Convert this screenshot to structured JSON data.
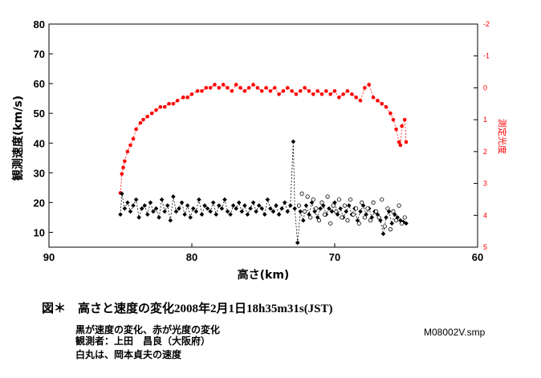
{
  "chart_data": {
    "type": "scatter",
    "xlabel": "高さ(km)",
    "ylabel": "観測速度(km/s)",
    "y2label": "測定光度",
    "xlim": [
      90,
      60
    ],
    "ylim": [
      5,
      80
    ],
    "y2lim": [
      5,
      -2
    ],
    "x_ticks": [
      90,
      80,
      70,
      60
    ],
    "y_ticks": [
      10,
      20,
      30,
      40,
      50,
      60,
      70,
      80
    ],
    "y2_ticks": [
      -2,
      -1,
      0,
      1,
      2,
      3,
      4,
      5
    ],
    "grid": false,
    "series": [
      {
        "id": "brightness",
        "axis": "right",
        "color": "#ff0000",
        "marker": "filled-circle",
        "line": "dashed",
        "points": [
          [
            85.0,
            3.3
          ],
          [
            84.9,
            2.7
          ],
          [
            84.8,
            2.5
          ],
          [
            84.7,
            2.3
          ],
          [
            84.5,
            2.0
          ],
          [
            84.3,
            1.8
          ],
          [
            84.1,
            1.6
          ],
          [
            83.9,
            1.3
          ],
          [
            83.6,
            1.1
          ],
          [
            83.4,
            1.0
          ],
          [
            83.1,
            0.9
          ],
          [
            82.8,
            0.8
          ],
          [
            82.5,
            0.7
          ],
          [
            82.2,
            0.6
          ],
          [
            81.9,
            0.6
          ],
          [
            81.6,
            0.5
          ],
          [
            81.3,
            0.5
          ],
          [
            81.0,
            0.4
          ],
          [
            80.6,
            0.3
          ],
          [
            80.3,
            0.3
          ],
          [
            80.0,
            0.2
          ],
          [
            79.6,
            0.1
          ],
          [
            79.3,
            0.1
          ],
          [
            79.0,
            0.0
          ],
          [
            78.7,
            0.0
          ],
          [
            78.4,
            -0.1
          ],
          [
            78.1,
            0.0
          ],
          [
            77.8,
            -0.1
          ],
          [
            77.5,
            0.0
          ],
          [
            77.2,
            0.1
          ],
          [
            76.9,
            -0.1
          ],
          [
            76.6,
            0.0
          ],
          [
            76.3,
            0.1
          ],
          [
            76.0,
            0.0
          ],
          [
            75.7,
            -0.1
          ],
          [
            75.4,
            0.0
          ],
          [
            75.1,
            0.1
          ],
          [
            74.8,
            0.0
          ],
          [
            74.5,
            0.1
          ],
          [
            74.2,
            0.0
          ],
          [
            73.9,
            0.2
          ],
          [
            73.6,
            0.1
          ],
          [
            73.3,
            0.0
          ],
          [
            73.0,
            0.1
          ],
          [
            72.7,
            0.2
          ],
          [
            72.4,
            0.1
          ],
          [
            72.1,
            0.0
          ],
          [
            71.8,
            0.1
          ],
          [
            71.5,
            0.2
          ],
          [
            71.2,
            0.1
          ],
          [
            70.9,
            0.2
          ],
          [
            70.6,
            0.1
          ],
          [
            70.3,
            0.2
          ],
          [
            70.0,
            0.1
          ],
          [
            69.7,
            0.3
          ],
          [
            69.4,
            0.2
          ],
          [
            69.1,
            0.1
          ],
          [
            68.8,
            0.2
          ],
          [
            68.5,
            0.3
          ],
          [
            68.2,
            0.4
          ],
          [
            67.9,
            0.0
          ],
          [
            67.6,
            -0.1
          ],
          [
            67.3,
            0.3
          ],
          [
            67.0,
            0.4
          ],
          [
            66.7,
            0.5
          ],
          [
            66.4,
            0.6
          ],
          [
            66.1,
            0.8
          ],
          [
            65.9,
            1.0
          ],
          [
            65.7,
            1.3
          ],
          [
            65.5,
            1.7
          ],
          [
            65.4,
            1.8
          ],
          [
            65.3,
            1.2
          ],
          [
            65.1,
            1.0
          ],
          [
            65.0,
            1.7
          ]
        ]
      },
      {
        "id": "velocity",
        "axis": "left",
        "color": "#000000",
        "marker": "filled-diamond",
        "line": "dashed",
        "points": [
          [
            85.0,
            16
          ],
          [
            84.9,
            23
          ],
          [
            84.7,
            18
          ],
          [
            84.5,
            20
          ],
          [
            84.3,
            17
          ],
          [
            84.1,
            19
          ],
          [
            83.9,
            21
          ],
          [
            83.7,
            15
          ],
          [
            83.5,
            18
          ],
          [
            83.3,
            19
          ],
          [
            83.1,
            16
          ],
          [
            82.9,
            20
          ],
          [
            82.7,
            17
          ],
          [
            82.5,
            18
          ],
          [
            82.3,
            15
          ],
          [
            82.1,
            21
          ],
          [
            81.9,
            17
          ],
          [
            81.7,
            19
          ],
          [
            81.5,
            14
          ],
          [
            81.3,
            22
          ],
          [
            81.1,
            17
          ],
          [
            80.9,
            18
          ],
          [
            80.7,
            20
          ],
          [
            80.5,
            16
          ],
          [
            80.3,
            19
          ],
          [
            80.1,
            15
          ],
          [
            79.9,
            18
          ],
          [
            79.7,
            17
          ],
          [
            79.5,
            21
          ],
          [
            79.3,
            16
          ],
          [
            79.1,
            19
          ],
          [
            78.9,
            18
          ],
          [
            78.7,
            17
          ],
          [
            78.5,
            20
          ],
          [
            78.3,
            16
          ],
          [
            78.1,
            19
          ],
          [
            77.9,
            18
          ],
          [
            77.7,
            21
          ],
          [
            77.5,
            17
          ],
          [
            77.3,
            16
          ],
          [
            77.1,
            19
          ],
          [
            76.9,
            18
          ],
          [
            76.7,
            20
          ],
          [
            76.5,
            17
          ],
          [
            76.3,
            19
          ],
          [
            76.1,
            16
          ],
          [
            75.9,
            18
          ],
          [
            75.7,
            20
          ],
          [
            75.5,
            17
          ],
          [
            75.3,
            19
          ],
          [
            75.1,
            18
          ],
          [
            74.9,
            16
          ],
          [
            74.7,
            21
          ],
          [
            74.5,
            18
          ],
          [
            74.3,
            17
          ],
          [
            74.1,
            19
          ],
          [
            73.9,
            16
          ],
          [
            73.7,
            18
          ],
          [
            73.5,
            20
          ],
          [
            73.3,
            17
          ],
          [
            73.1,
            19
          ],
          [
            72.9,
            40.5
          ],
          [
            72.8,
            18
          ],
          [
            72.6,
            6.5
          ],
          [
            72.4,
            17
          ],
          [
            72.2,
            14
          ],
          [
            72.0,
            19
          ],
          [
            71.8,
            16
          ],
          [
            71.6,
            20
          ],
          [
            71.4,
            17
          ],
          [
            71.2,
            15
          ],
          [
            71.0,
            18
          ],
          [
            70.8,
            19
          ],
          [
            70.6,
            16
          ],
          [
            70.4,
            18
          ],
          [
            70.2,
            17
          ],
          [
            70.0,
            20
          ],
          [
            69.8,
            16
          ],
          [
            69.6,
            18
          ],
          [
            69.4,
            15
          ],
          [
            69.2,
            17
          ],
          [
            69.0,
            19
          ],
          [
            68.8,
            16
          ],
          [
            68.6,
            18
          ],
          [
            68.4,
            14
          ],
          [
            68.2,
            17
          ],
          [
            68.0,
            19
          ],
          [
            67.8,
            16
          ],
          [
            67.6,
            18
          ],
          [
            67.4,
            15
          ],
          [
            67.2,
            17
          ],
          [
            67.0,
            16
          ],
          [
            66.8,
            14
          ],
          [
            66.6,
            9.5
          ],
          [
            66.4,
            15
          ],
          [
            66.2,
            17
          ],
          [
            66.0,
            13
          ],
          [
            65.8,
            16
          ],
          [
            65.6,
            15
          ],
          [
            65.4,
            14
          ],
          [
            65.2,
            13.5
          ],
          [
            65.0,
            13
          ]
        ]
      },
      {
        "id": "okamoto-velocity",
        "axis": "left",
        "color": "#000000",
        "marker": "open-circle",
        "line": "none",
        "points": [
          [
            72.5,
            19
          ],
          [
            72.3,
            23
          ],
          [
            72.1,
            17
          ],
          [
            71.9,
            22
          ],
          [
            71.7,
            15
          ],
          [
            71.5,
            21
          ],
          [
            71.3,
            18
          ],
          [
            71.1,
            14
          ],
          [
            70.9,
            20
          ],
          [
            70.7,
            16
          ],
          [
            70.5,
            22
          ],
          [
            70.3,
            13
          ],
          [
            70.1,
            19
          ],
          [
            69.9,
            17
          ],
          [
            69.7,
            21
          ],
          [
            69.5,
            15
          ],
          [
            69.3,
            19
          ],
          [
            69.1,
            14
          ],
          [
            68.9,
            21
          ],
          [
            68.7,
            16
          ],
          [
            68.5,
            18
          ],
          [
            68.3,
            13
          ],
          [
            68.1,
            20
          ],
          [
            67.9,
            15
          ],
          [
            67.7,
            18
          ],
          [
            67.5,
            14
          ],
          [
            67.3,
            20
          ],
          [
            67.1,
            17
          ],
          [
            66.9,
            15
          ],
          [
            66.7,
            21
          ],
          [
            66.5,
            12
          ],
          [
            66.3,
            18
          ],
          [
            66.1,
            11
          ],
          [
            65.9,
            17
          ],
          [
            65.7,
            14
          ],
          [
            65.5,
            19
          ],
          [
            65.3,
            13
          ],
          [
            65.1,
            15
          ]
        ]
      }
    ]
  },
  "caption": {
    "title": "図＊　高さと速度の変化",
    "datetime": "2008年2月1日18h35m31s(JST)",
    "note1": "黒が速度の変化、赤が光度の変化",
    "note2": "観測者：上田　昌良（大阪府）",
    "note3": "白丸は、岡本貞夫の速度",
    "filename": "M08002V.smp"
  }
}
